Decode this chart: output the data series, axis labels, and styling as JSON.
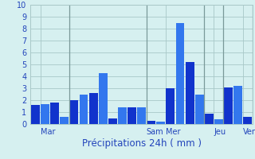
{
  "bar_values": [
    1.6,
    1.7,
    1.8,
    0.6,
    2.0,
    2.5,
    2.6,
    4.3,
    0.5,
    1.4,
    1.4,
    1.4,
    0.3,
    0.2,
    3.0,
    8.5,
    5.2,
    2.5,
    0.9,
    0.4,
    3.1,
    3.2,
    0.6
  ],
  "day_tick_positions": [
    0.5,
    11.5,
    13.5,
    18.5,
    21.5
  ],
  "day_labels": [
    "Mar",
    "Sam",
    "Mer",
    "Jeu",
    "Ven"
  ],
  "day_vline_positions": [
    3.5,
    11.5,
    17.5,
    19.5,
    22.5
  ],
  "xlabel": "Précipitations 24h ( mm )",
  "ylim": [
    0,
    10
  ],
  "yticks": [
    0,
    1,
    2,
    3,
    4,
    5,
    6,
    7,
    8,
    9,
    10
  ],
  "bar_color_dark": "#1133cc",
  "bar_color_light": "#3377ee",
  "background_color": "#d6f0f0",
  "grid_color": "#a8c8c8",
  "tick_label_color": "#2244bb",
  "xlabel_color": "#2244bb",
  "xlabel_fontsize": 8.5,
  "tick_fontsize": 7
}
